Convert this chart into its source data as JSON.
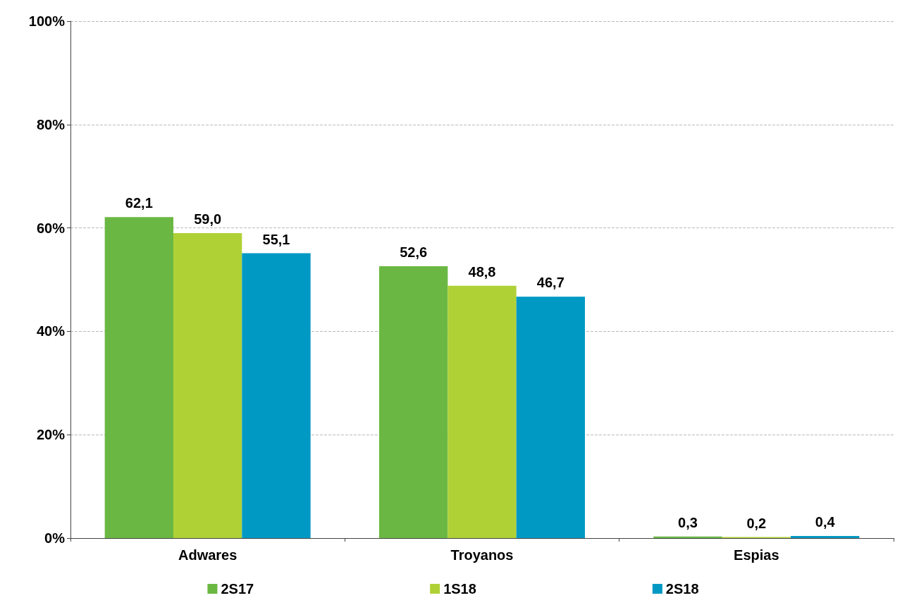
{
  "chart_data": {
    "type": "bar",
    "categories": [
      "Adwares",
      "Troyanos",
      "Espias"
    ],
    "series": [
      {
        "name": "2S17",
        "color": "#6ab843",
        "values": [
          62.1,
          52.6,
          0.3
        ],
        "value_labels": [
          "62,1",
          "52,6",
          "0,3"
        ]
      },
      {
        "name": "1S18",
        "color": "#b0d136",
        "values": [
          59.0,
          48.8,
          0.2
        ],
        "value_labels": [
          "59,0",
          "48,8",
          "0,2"
        ]
      },
      {
        "name": "2S18",
        "color": "#0099c4",
        "values": [
          55.1,
          46.7,
          0.4
        ],
        "value_labels": [
          "55,1",
          "46,7",
          "0,4"
        ]
      }
    ],
    "ylim": [
      0,
      100
    ],
    "yticks": [
      {
        "value": 0,
        "label": "0%"
      },
      {
        "value": 20,
        "label": "20%"
      },
      {
        "value": 40,
        "label": "40%"
      },
      {
        "value": 60,
        "label": "60%"
      },
      {
        "value": 80,
        "label": "80%"
      },
      {
        "value": 100,
        "label": "100%"
      }
    ],
    "grid": "y",
    "legend": "bottom"
  }
}
